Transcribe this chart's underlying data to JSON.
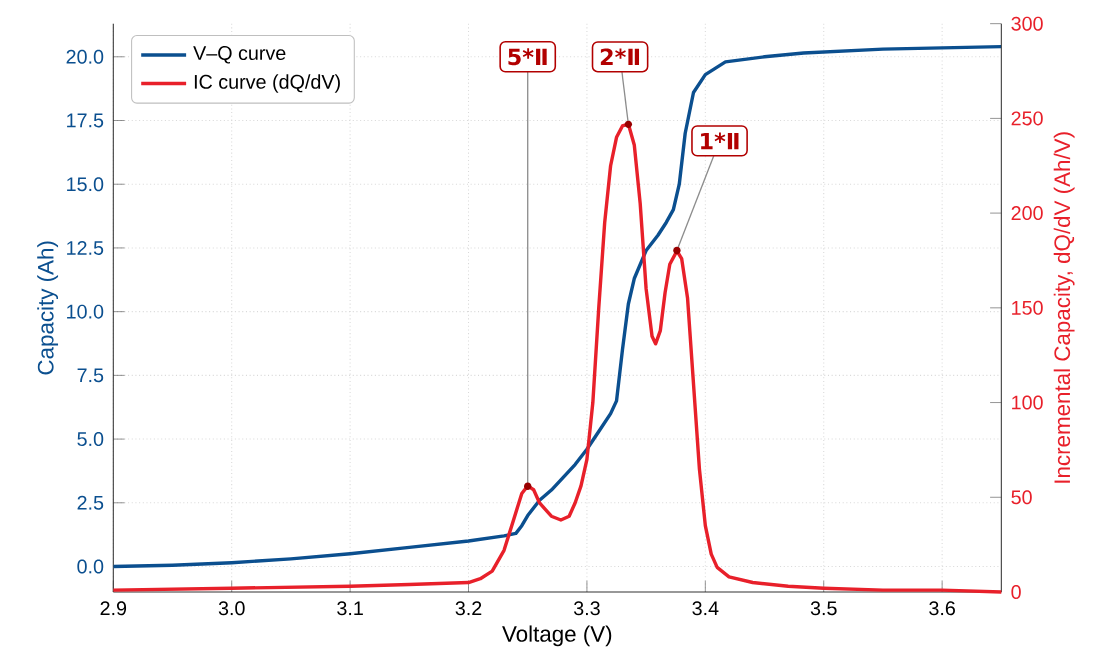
{
  "chart_data": {
    "type": "line",
    "xlabel": "Voltage (V)",
    "ylabel": "Capacity (Ah)",
    "y2label": "Incremental Capacity, dQ/dV (Ah/V)",
    "xlim": [
      2.9,
      3.65
    ],
    "xticks": [
      2.9,
      {
        "value": 3.0,
        "label": "3.0"
      },
      3.1,
      3.2,
      3.3,
      3.4,
      3.5,
      3.6
    ],
    "ylim": [
      -1,
      21.3
    ],
    "yticks": [
      {
        "value": 0,
        "label": "0.0"
      },
      2.5,
      {
        "value": 5,
        "label": "5.0"
      },
      7.5,
      {
        "value": 10,
        "label": "10.0"
      },
      12.5,
      {
        "value": 15,
        "label": "15.0"
      },
      17.5,
      {
        "value": 20,
        "label": "20.0"
      }
    ],
    "y2lim": [
      0,
      300
    ],
    "y2ticks": [
      0,
      50,
      100,
      150,
      200,
      250,
      300
    ],
    "grid": true,
    "legend": "top left",
    "series": [
      {
        "name": "V–Q curve",
        "color": "#0b4f8f",
        "x": [
          2.9,
          2.95,
          3.0,
          3.05,
          3.1,
          3.15,
          3.2,
          3.23,
          3.24,
          3.245,
          3.25,
          3.255,
          3.26,
          3.27,
          3.28,
          3.29,
          3.3,
          3.31,
          3.32,
          3.325,
          3.33,
          3.335,
          3.34,
          3.35,
          3.36,
          3.367,
          3.373,
          3.378,
          3.383,
          3.39,
          3.4,
          3.417,
          3.45,
          3.483,
          3.55,
          3.65
        ],
        "values": [
          0.0,
          0.05,
          0.15,
          0.3,
          0.5,
          0.75,
          1.0,
          1.2,
          1.3,
          1.6,
          2.0,
          2.3,
          2.6,
          3.0,
          3.5,
          4.0,
          4.6,
          5.3,
          6.0,
          6.5,
          8.5,
          10.3,
          11.3,
          12.4,
          13.0,
          13.5,
          14.0,
          15.0,
          17.0,
          18.6,
          19.3,
          19.8,
          20.0,
          20.15,
          20.3,
          20.4
        ]
      },
      {
        "name": "IC curve (dQ/dV)",
        "color": "#e8202a",
        "axis": "y2",
        "x": [
          2.9,
          3.0,
          3.1,
          3.15,
          3.2,
          3.21,
          3.22,
          3.23,
          3.24,
          3.245,
          3.25,
          3.255,
          3.26,
          3.27,
          3.278,
          3.285,
          3.29,
          3.295,
          3.3,
          3.305,
          3.31,
          3.315,
          3.32,
          3.325,
          3.33,
          3.335,
          3.34,
          3.345,
          3.35,
          3.355,
          3.358,
          3.362,
          3.366,
          3.37,
          3.376,
          3.38,
          3.385,
          3.39,
          3.395,
          3.4,
          3.405,
          3.41,
          3.42,
          3.44,
          3.47,
          3.5,
          3.55,
          3.6,
          3.65
        ],
        "values": [
          1,
          2,
          3,
          4,
          5,
          7,
          11,
          22,
          42,
          52,
          56,
          54,
          47,
          40,
          38,
          40,
          47,
          56,
          70,
          100,
          150,
          195,
          225,
          240,
          246,
          247,
          236,
          205,
          160,
          135,
          131,
          138,
          158,
          173,
          180,
          176,
          155,
          110,
          65,
          35,
          20,
          13,
          8,
          5,
          3,
          2,
          1,
          1,
          0
        ]
      }
    ],
    "annotations": [
      {
        "text": "5*Ⅱ",
        "x": 3.25,
        "y": 3.15
      },
      {
        "text": "2*Ⅱ",
        "x": 3.335,
        "y": 17.35
      },
      {
        "text": "1*Ⅱ",
        "x": 3.376,
        "y": 12.4
      }
    ]
  }
}
